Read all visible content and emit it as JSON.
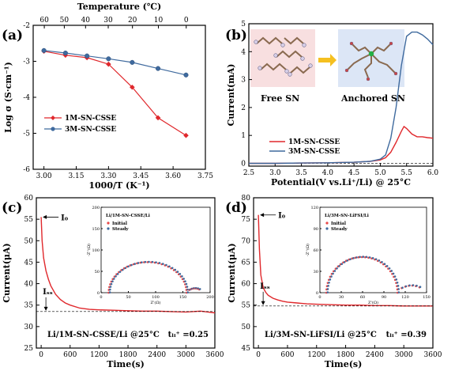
{
  "panel_labels": {
    "a": "(a)",
    "b": "(b)",
    "c": "(c)",
    "d": "(d)"
  },
  "colors": {
    "red": "#e0282c",
    "blue": "#3f6a9e",
    "red_dot": "#e84848",
    "blue_dot": "#3f6a9e"
  },
  "chart_data": [
    {
      "id": "a",
      "type": "line",
      "title": "",
      "xlabel": "1000/T (K⁻¹)",
      "ylabel": "Log σ (S·cm⁻¹)",
      "top_axis_label": "Temperature (℃)",
      "xlim": [
        2.95,
        3.75
      ],
      "ylim": [
        -6,
        -2
      ],
      "xticks": [
        "3.00",
        "3.15",
        "3.30",
        "3.45",
        "3.60",
        "3.75"
      ],
      "yticks": [
        "-2",
        "-3",
        "-4",
        "-5",
        "-6"
      ],
      "top_ticks": [
        "60",
        "50",
        "40",
        "30",
        "20",
        "10",
        "0"
      ],
      "legend_position": "bottom-left",
      "series": [
        {
          "name": "1M-SN-CSSE",
          "marker": "diamond",
          "x": [
            3.0,
            3.1,
            3.2,
            3.3,
            3.41,
            3.53,
            3.66
          ],
          "y": [
            -2.72,
            -2.83,
            -2.9,
            -3.08,
            -3.72,
            -4.57,
            -5.06
          ]
        },
        {
          "name": "3M-SN-CSSE",
          "marker": "circle",
          "x": [
            3.0,
            3.1,
            3.2,
            3.3,
            3.41,
            3.53,
            3.66
          ],
          "y": [
            -2.7,
            -2.77,
            -2.85,
            -2.93,
            -3.03,
            -3.2,
            -3.38
          ]
        }
      ]
    },
    {
      "id": "b",
      "type": "line",
      "title": "",
      "xlabel": "Potential(V vs.Li⁺/Li) @ 25°C",
      "ylabel": "Current(mA)",
      "xlim": [
        2.5,
        6.0
      ],
      "ylim": [
        -0.1,
        5.0
      ],
      "xticks": [
        "2.5",
        "3.0",
        "3.5",
        "4.0",
        "4.5",
        "5.0",
        "5.5",
        "6.0"
      ],
      "yticks": [
        "0",
        "1",
        "2",
        "3",
        "4",
        "5"
      ],
      "legend_position": "lower-center",
      "inset_labels": [
        "Free SN",
        "Anchored SN"
      ],
      "series": [
        {
          "name": "1M-SN-CSSE",
          "x": [
            2.5,
            3.0,
            3.5,
            4.0,
            4.5,
            4.8,
            5.0,
            5.1,
            5.2,
            5.3,
            5.4,
            5.45,
            5.5,
            5.6,
            5.7,
            5.8,
            5.9,
            6.0
          ],
          "y": [
            0.0,
            0.0,
            0.01,
            0.02,
            0.04,
            0.07,
            0.12,
            0.2,
            0.4,
            0.75,
            1.15,
            1.32,
            1.25,
            1.05,
            0.95,
            0.95,
            0.92,
            0.9
          ]
        },
        {
          "name": "3M-SN-CSSE",
          "x": [
            2.5,
            3.0,
            3.5,
            4.0,
            4.5,
            4.8,
            5.0,
            5.1,
            5.2,
            5.3,
            5.4,
            5.5,
            5.6,
            5.7,
            5.8,
            5.9,
            6.0
          ],
          "y": [
            0.0,
            0.0,
            0.01,
            0.02,
            0.04,
            0.07,
            0.15,
            0.3,
            0.9,
            2.0,
            3.5,
            4.55,
            4.7,
            4.7,
            4.6,
            4.45,
            4.25
          ]
        }
      ]
    },
    {
      "id": "c",
      "type": "line",
      "title": "",
      "xlabel": "Time(s)",
      "ylabel": "Current(μA)",
      "xlim": [
        -100,
        3600
      ],
      "ylim": [
        25,
        60
      ],
      "xticks": [
        "0",
        "600",
        "1200",
        "1800",
        "2400",
        "3000",
        "3600"
      ],
      "yticks": [
        "25",
        "30",
        "35",
        "40",
        "45",
        "50",
        "55",
        "60"
      ],
      "annotations": {
        "i0": "I₀",
        "iss": "Iₛₛ",
        "label": "Li/1M-SN-CSSE/Li @25°C",
        "t": "tₗᵢ⁺ =0.25"
      },
      "series": [
        {
          "name": "",
          "x": [
            0,
            20,
            50,
            100,
            150,
            200,
            300,
            400,
            500,
            600,
            800,
            1000,
            1200,
            1500,
            1800,
            2100,
            2400,
            2700,
            3000,
            3300,
            3600
          ],
          "y": [
            55.5,
            50,
            46,
            43,
            41,
            39.5,
            37.5,
            36.3,
            35.5,
            35,
            34.3,
            34,
            33.9,
            33.8,
            33.7,
            33.6,
            33.6,
            33.5,
            33.4,
            33.6,
            33.2
          ]
        }
      ],
      "inset": {
        "title": "Li/1M-SN-CSSE/Li",
        "xlabel": "Z'(Ω)",
        "ylabel": "-Z''(Ω)",
        "xlim": [
          0,
          200
        ],
        "ylim": [
          0,
          200
        ],
        "xticks": [
          "0",
          "50",
          "100",
          "150",
          "200"
        ],
        "yticks": [
          "0",
          "50",
          "100",
          "150",
          "200"
        ],
        "legend": [
          "Initial",
          "Steady"
        ],
        "arc": {
          "start": 15,
          "end": 158,
          "tail_end": 180
        }
      }
    },
    {
      "id": "d",
      "type": "line",
      "title": "",
      "xlabel": "Time(s)",
      "ylabel": "Current(μA)",
      "xlim": [
        -100,
        3600
      ],
      "ylim": [
        45,
        80
      ],
      "xticks": [
        "0",
        "600",
        "1200",
        "1800",
        "2400",
        "3000",
        "3600"
      ],
      "yticks": [
        "45",
        "50",
        "55",
        "60",
        "65",
        "70",
        "75",
        "80"
      ],
      "annotations": {
        "i0": "I₀",
        "iss": "Iₛₛ",
        "label": "Li/3M-SN-LiFSI/Li @25°C",
        "t": "tₗᵢ⁺ =0.39"
      },
      "series": [
        {
          "name": "",
          "x": [
            0,
            20,
            50,
            100,
            150,
            200,
            300,
            400,
            500,
            600,
            800,
            1000,
            1200,
            1500,
            1800,
            2100,
            2400,
            2700,
            3000,
            3300,
            3600
          ],
          "y": [
            76,
            68,
            62,
            59,
            58,
            57.3,
            56.6,
            56.2,
            55.9,
            55.7,
            55.5,
            55.3,
            55.2,
            55.1,
            55.0,
            55.0,
            54.9,
            54.9,
            54.8,
            54.8,
            54.8
          ]
        }
      ],
      "inset": {
        "title": "Li/3M-SN-LiFSI/Li",
        "xlabel": "Z'(Ω)",
        "ylabel": "-Z''(Ω)",
        "xlim": [
          0,
          150
        ],
        "ylim": [
          0,
          120
        ],
        "xticks": [
          "0",
          "30",
          "60",
          "90",
          "120",
          "150"
        ],
        "yticks": [
          "0",
          "30",
          "60",
          "90",
          "120"
        ],
        "legend": [
          "Initial",
          "Steady"
        ],
        "arc": {
          "start": 10,
          "end": 110,
          "tail_end": 140
        }
      }
    }
  ]
}
